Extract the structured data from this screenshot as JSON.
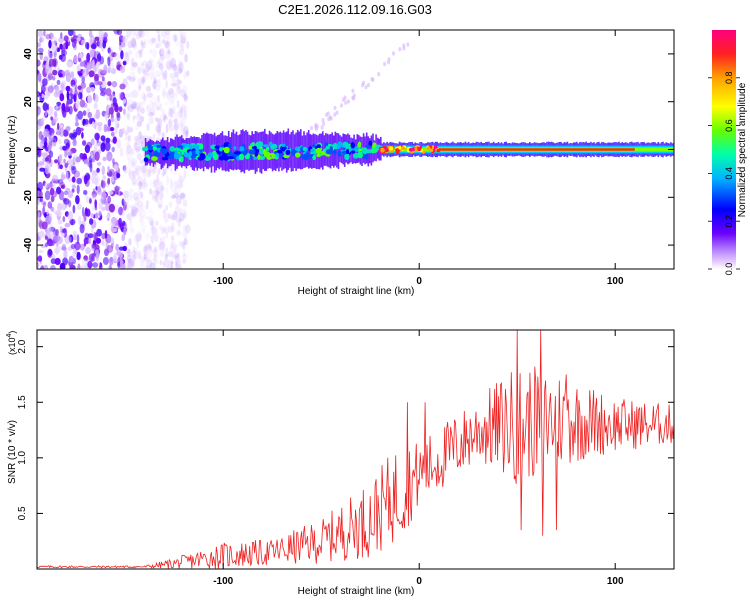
{
  "figure_title": "C2E1.2026.112.09.16.G03",
  "chart_data": [
    {
      "type": "heatmap",
      "title": "C2E1.2026.112.09.16.G03",
      "xlabel": "Height of straight line (km)",
      "ylabel": "Frequency (Hz)",
      "xlim": [
        -195,
        130
      ],
      "ylim": [
        -50,
        50
      ],
      "x_ticks": [
        -100,
        0,
        100
      ],
      "x_tick_labels": [
        "-100",
        "0",
        "100"
      ],
      "y_ticks": [
        -40,
        -20,
        0,
        20,
        40
      ],
      "y_tick_labels": [
        "-40",
        "-20",
        "0",
        "20",
        "40"
      ],
      "colorbar": {
        "label": "Normalized spectral amplitude",
        "range": [
          0,
          1
        ],
        "ticks": [
          0.0,
          0.2,
          0.4,
          0.6,
          0.8
        ],
        "tick_labels": [
          "0.0",
          "0.2",
          "0.4",
          "0.6",
          "0.8"
        ],
        "colormap": [
          "#ffffff",
          "#d6b3ff",
          "#8a2be2",
          "#4b00ff",
          "#0000ff",
          "#00c8ff",
          "#00ff80",
          "#7fff00",
          "#ffff00",
          "#ffa500",
          "#ff2020",
          "#ff00a0"
        ]
      },
      "features": {
        "noise_region_x": [
          -195,
          -130
        ],
        "signal_band_center_hz": 0,
        "signal_band_halfwidth_hz": [
          5,
          3
        ],
        "signal_start_x": -140,
        "strong_signal_start_x": -20
      }
    },
    {
      "type": "line",
      "xlabel": "Height of straight line (km)",
      "ylabel": "SNR (10 * v/v)",
      "y_multiplier": "(x10",
      "y_multiplier_exp": "4",
      "y_multiplier_close": ")",
      "xlim": [
        -195,
        130
      ],
      "ylim": [
        0,
        2.15
      ],
      "x_ticks": [
        -100,
        0,
        100
      ],
      "x_tick_labels": [
        "-100",
        "0",
        "100"
      ],
      "y_ticks": [
        0.5,
        1.0,
        1.5,
        2.0
      ],
      "y_tick_labels": [
        "0.5",
        "1.0",
        "1.5",
        "2.0"
      ],
      "series": [
        {
          "name": "SNR",
          "color": "#ee2222",
          "envelope": [
            {
              "x": -195,
              "base": 0.02,
              "amp": 0.01
            },
            {
              "x": -140,
              "base": 0.02,
              "amp": 0.01
            },
            {
              "x": -125,
              "base": 0.05,
              "amp": 0.05
            },
            {
              "x": -100,
              "base": 0.12,
              "amp": 0.12
            },
            {
              "x": -75,
              "base": 0.15,
              "amp": 0.12
            },
            {
              "x": -50,
              "base": 0.25,
              "amp": 0.2
            },
            {
              "x": -25,
              "base": 0.45,
              "amp": 0.35
            },
            {
              "x": -10,
              "base": 0.7,
              "amp": 0.45
            },
            {
              "x": 0,
              "base": 0.85,
              "amp": 0.3
            },
            {
              "x": 15,
              "base": 1.05,
              "amp": 0.3
            },
            {
              "x": 30,
              "base": 1.25,
              "amp": 0.3
            },
            {
              "x": 50,
              "base": 1.3,
              "amp": 0.55
            },
            {
              "x": 70,
              "base": 1.35,
              "amp": 0.45
            },
            {
              "x": 100,
              "base": 1.3,
              "amp": 0.25
            },
            {
              "x": 130,
              "base": 1.3,
              "amp": 0.18
            }
          ],
          "peaks": [
            {
              "x": -6,
              "y": 1.5
            },
            {
              "x": 3,
              "y": 1.5
            },
            {
              "x": 50,
              "y": 2.15
            },
            {
              "x": 52,
              "y": 0.35
            },
            {
              "x": 62,
              "y": 2.15
            },
            {
              "x": 63,
              "y": 0.3
            },
            {
              "x": 70,
              "y": 0.35
            },
            {
              "x": 75,
              "y": 1.75
            }
          ]
        }
      ]
    }
  ]
}
